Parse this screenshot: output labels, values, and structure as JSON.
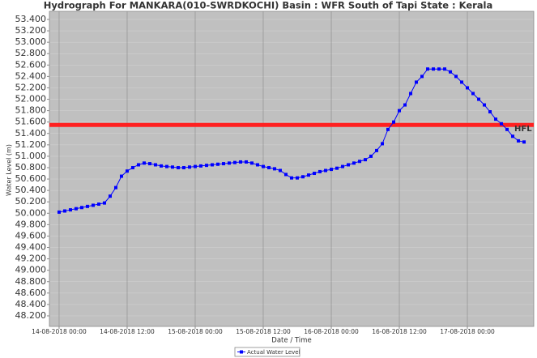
{
  "chart_data": {
    "type": "line",
    "title": "Hydrograph For MANKARA(010-SWRDKOCHI) Basin : WFR South of Tapi State : Kerala",
    "y_label": "Water Level (m)",
    "x_label": "Date / Time",
    "x": [
      0,
      1,
      2,
      3,
      4,
      5,
      6,
      7,
      8,
      9,
      10,
      11,
      12,
      13,
      14,
      15,
      16,
      17,
      18,
      19,
      20,
      21,
      22,
      23,
      24,
      25,
      26,
      27,
      28,
      29,
      30,
      31,
      32,
      33,
      34,
      35,
      36,
      37,
      38,
      39,
      40,
      41,
      42,
      43,
      44,
      45,
      46,
      47,
      48,
      49,
      50,
      51,
      52,
      53,
      54,
      55,
      56,
      57,
      58,
      59,
      60,
      61,
      62,
      63,
      64,
      65,
      66,
      67,
      68,
      69,
      70,
      71,
      72,
      73,
      74,
      75,
      76,
      77,
      78,
      79,
      80,
      81,
      82
    ],
    "series": [
      {
        "name": "Actual Water Level",
        "color": "#0000ff",
        "values": [
          50.02,
          50.04,
          50.06,
          50.08,
          50.1,
          50.12,
          50.14,
          50.16,
          50.18,
          50.3,
          50.45,
          50.65,
          50.74,
          50.8,
          50.85,
          50.88,
          50.87,
          50.85,
          50.83,
          50.82,
          50.81,
          50.8,
          50.8,
          50.81,
          50.82,
          50.83,
          50.84,
          50.85,
          50.86,
          50.87,
          50.88,
          50.89,
          50.9,
          50.9,
          50.88,
          50.85,
          50.82,
          50.8,
          50.78,
          50.75,
          50.68,
          50.62,
          50.62,
          50.64,
          50.67,
          50.7,
          50.73,
          50.75,
          50.77,
          50.79,
          50.82,
          50.85,
          50.88,
          50.91,
          50.94,
          51.0,
          51.1,
          51.22,
          51.47,
          51.6,
          51.8,
          51.9,
          52.1,
          52.3,
          52.4,
          52.53,
          52.53,
          52.53,
          52.53,
          52.48,
          52.4,
          52.3,
          52.2,
          52.1,
          52.0,
          51.9,
          51.78,
          51.65,
          51.57,
          51.47,
          51.35,
          51.27,
          51.25
        ]
      }
    ],
    "threshold": {
      "label": "HFL",
      "value": 51.55,
      "color": "#ff2020"
    },
    "xlim": [
      -1.71,
      83.71
    ],
    "xticks": [
      {
        "value": 0,
        "label": "14-08-2018 00:00"
      },
      {
        "value": 12,
        "label": "14-08-2018 12:00"
      },
      {
        "value": 24,
        "label": "15-08-2018 00:00"
      },
      {
        "value": 36,
        "label": "15-08-2018 12:00"
      },
      {
        "value": 48,
        "label": "16-08-2018 00:00"
      },
      {
        "value": 60,
        "label": "16-08-2018 12:00"
      },
      {
        "value": 72,
        "label": "17-08-2018 00:00"
      }
    ],
    "ylim": [
      48.015,
      53.542
    ],
    "yticks": [
      {
        "value": 48.2,
        "label": "48.200"
      },
      {
        "value": 48.4,
        "label": "48.400"
      },
      {
        "value": 48.6,
        "label": "48.600"
      },
      {
        "value": 48.8,
        "label": "48.800"
      },
      {
        "value": 49.0,
        "label": "49.000"
      },
      {
        "value": 49.2,
        "label": "49.200"
      },
      {
        "value": 49.4,
        "label": "49.400"
      },
      {
        "value": 49.6,
        "label": "49.600"
      },
      {
        "value": 49.8,
        "label": "49.800"
      },
      {
        "value": 50.0,
        "label": "50.000"
      },
      {
        "value": 50.2,
        "label": "50.200"
      },
      {
        "value": 50.4,
        "label": "50.400"
      },
      {
        "value": 50.6,
        "label": "50.600"
      },
      {
        "value": 50.8,
        "label": "50.800"
      },
      {
        "value": 51.0,
        "label": "51.000"
      },
      {
        "value": 51.2,
        "label": "51.200"
      },
      {
        "value": 51.4,
        "label": "51.400"
      },
      {
        "value": 51.6,
        "label": "51.600"
      },
      {
        "value": 51.8,
        "label": "51.800"
      },
      {
        "value": 52.0,
        "label": "52.000"
      },
      {
        "value": 52.2,
        "label": "52.200"
      },
      {
        "value": 52.4,
        "label": "52.400"
      },
      {
        "value": 52.6,
        "label": "52.600"
      },
      {
        "value": 52.8,
        "label": "52.800"
      },
      {
        "value": 53.0,
        "label": "53.000"
      },
      {
        "value": 53.2,
        "label": "53.200"
      },
      {
        "value": 53.4,
        "label": "53.400"
      }
    ],
    "grid": true,
    "background": "#c0c0c0"
  }
}
